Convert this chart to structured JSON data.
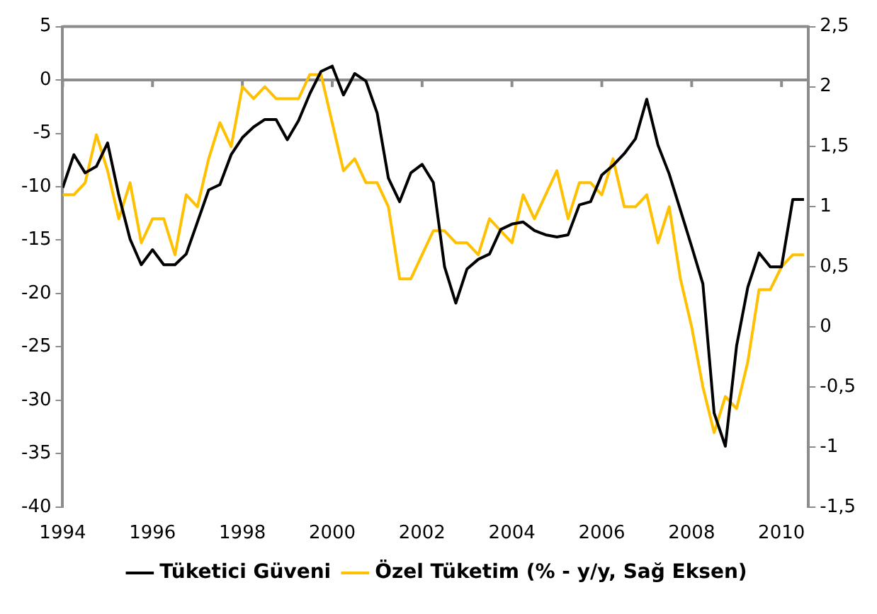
{
  "chart_data": {
    "type": "line",
    "x": [
      1994,
      1994.25,
      1994.5,
      1994.75,
      1995,
      1995.25,
      1995.5,
      1995.75,
      1996,
      1996.25,
      1996.5,
      1996.75,
      1997,
      1997.25,
      1997.5,
      1997.75,
      1998,
      1998.25,
      1998.5,
      1998.75,
      1999,
      1999.25,
      1999.5,
      1999.75,
      2000,
      2000.25,
      2000.5,
      2000.75,
      2001,
      2001.25,
      2001.5,
      2001.75,
      2002,
      2002.25,
      2002.5,
      2002.75,
      2003,
      2003.25,
      2003.5,
      2003.75,
      2004,
      2004.25,
      2004.5,
      2004.75,
      2005,
      2005.25,
      2005.5,
      2005.75,
      2006,
      2006.25,
      2006.5,
      2006.75,
      2007,
      2007.25,
      2007.5,
      2007.75,
      2008,
      2008.25,
      2008.5,
      2008.75,
      2009,
      2009.25,
      2009.5,
      2009.75,
      2010,
      2010.25,
      2010.5
    ],
    "series": [
      {
        "name": "Tüketici Güveni",
        "color": "#000000",
        "values": [
          -10.1,
          -7.0,
          -8.7,
          -8.1,
          -5.9,
          -10.8,
          -14.9,
          -17.3,
          -15.9,
          -17.3,
          -17.3,
          -16.3,
          -13.3,
          -10.3,
          -9.8,
          -7.0,
          -5.4,
          -4.4,
          -3.7,
          -3.7,
          -5.6,
          -3.8,
          -1.3,
          0.8,
          1.3,
          -1.4,
          0.6,
          -0.1,
          -3.1,
          -9.2,
          -11.4,
          -8.7,
          -7.9,
          -9.6,
          -17.5,
          -20.9,
          -17.7,
          -16.8,
          -16.3,
          -14.0,
          -13.5,
          -13.3,
          -14.1,
          -14.5,
          -14.7,
          -14.5,
          -11.7,
          -11.4,
          -8.9,
          -8.0,
          -6.9,
          -5.5,
          -1.8,
          -6.1,
          -8.8,
          -12.2,
          -15.6,
          -19.1,
          -31.2,
          -34.3,
          -24.9,
          -19.4,
          -16.2,
          -17.5,
          -17.5,
          -11.2,
          -11.2
        ]
      },
      {
        "name": "Özel Tüketim (% - y/y, Sağ Eksen)",
        "color": "#ffc000",
        "axis": "y2",
        "values": [
          1.1,
          1.1,
          1.2,
          1.6,
          1.3,
          0.9,
          1.2,
          0.7,
          0.9,
          0.9,
          0.6,
          1.1,
          1.0,
          1.4,
          1.7,
          1.5,
          2.0,
          1.9,
          2.0,
          1.9,
          1.9,
          1.9,
          2.1,
          2.1,
          1.7,
          1.3,
          1.4,
          1.2,
          1.2,
          1.0,
          0.4,
          0.4,
          0.6,
          0.8,
          0.8,
          0.7,
          0.7,
          0.6,
          0.9,
          0.8,
          0.7,
          1.1,
          0.9,
          1.1,
          1.3,
          0.9,
          1.2,
          1.2,
          1.1,
          1.4,
          1.0,
          1.0,
          1.1,
          0.7,
          1.0,
          0.4,
          0.0,
          -0.5,
          -0.88,
          -0.58,
          -0.68,
          -0.29,
          0.31,
          0.31,
          0.5,
          0.6,
          0.6
        ]
      }
    ],
    "xlim": [
      1994,
      2010.6
    ],
    "xticks": [
      1994,
      1996,
      1998,
      2000,
      2002,
      2004,
      2006,
      2008,
      2010
    ],
    "ylim": [
      -40,
      5
    ],
    "yticks": [
      -40,
      -35,
      -30,
      -25,
      -20,
      -15,
      -10,
      -5,
      0,
      5
    ],
    "y2lim": [
      -1.5,
      2.5
    ],
    "y2ticks": [
      {
        "value": -1.5,
        "label": "-1,5"
      },
      -1,
      {
        "value": -0.5,
        "label": "-0,5"
      },
      0,
      {
        "value": 0.5,
        "label": "0,5"
      },
      1,
      {
        "value": 1.5,
        "label": "1,5"
      },
      2,
      {
        "value": 2.5,
        "label": "2,5"
      }
    ],
    "ref_lines": [
      {
        "axis": "y",
        "value": 0,
        "color": "#8c8c8c"
      }
    ],
    "grid": false,
    "legend": "bottom",
    "marker": "none",
    "line_style": "solid"
  }
}
